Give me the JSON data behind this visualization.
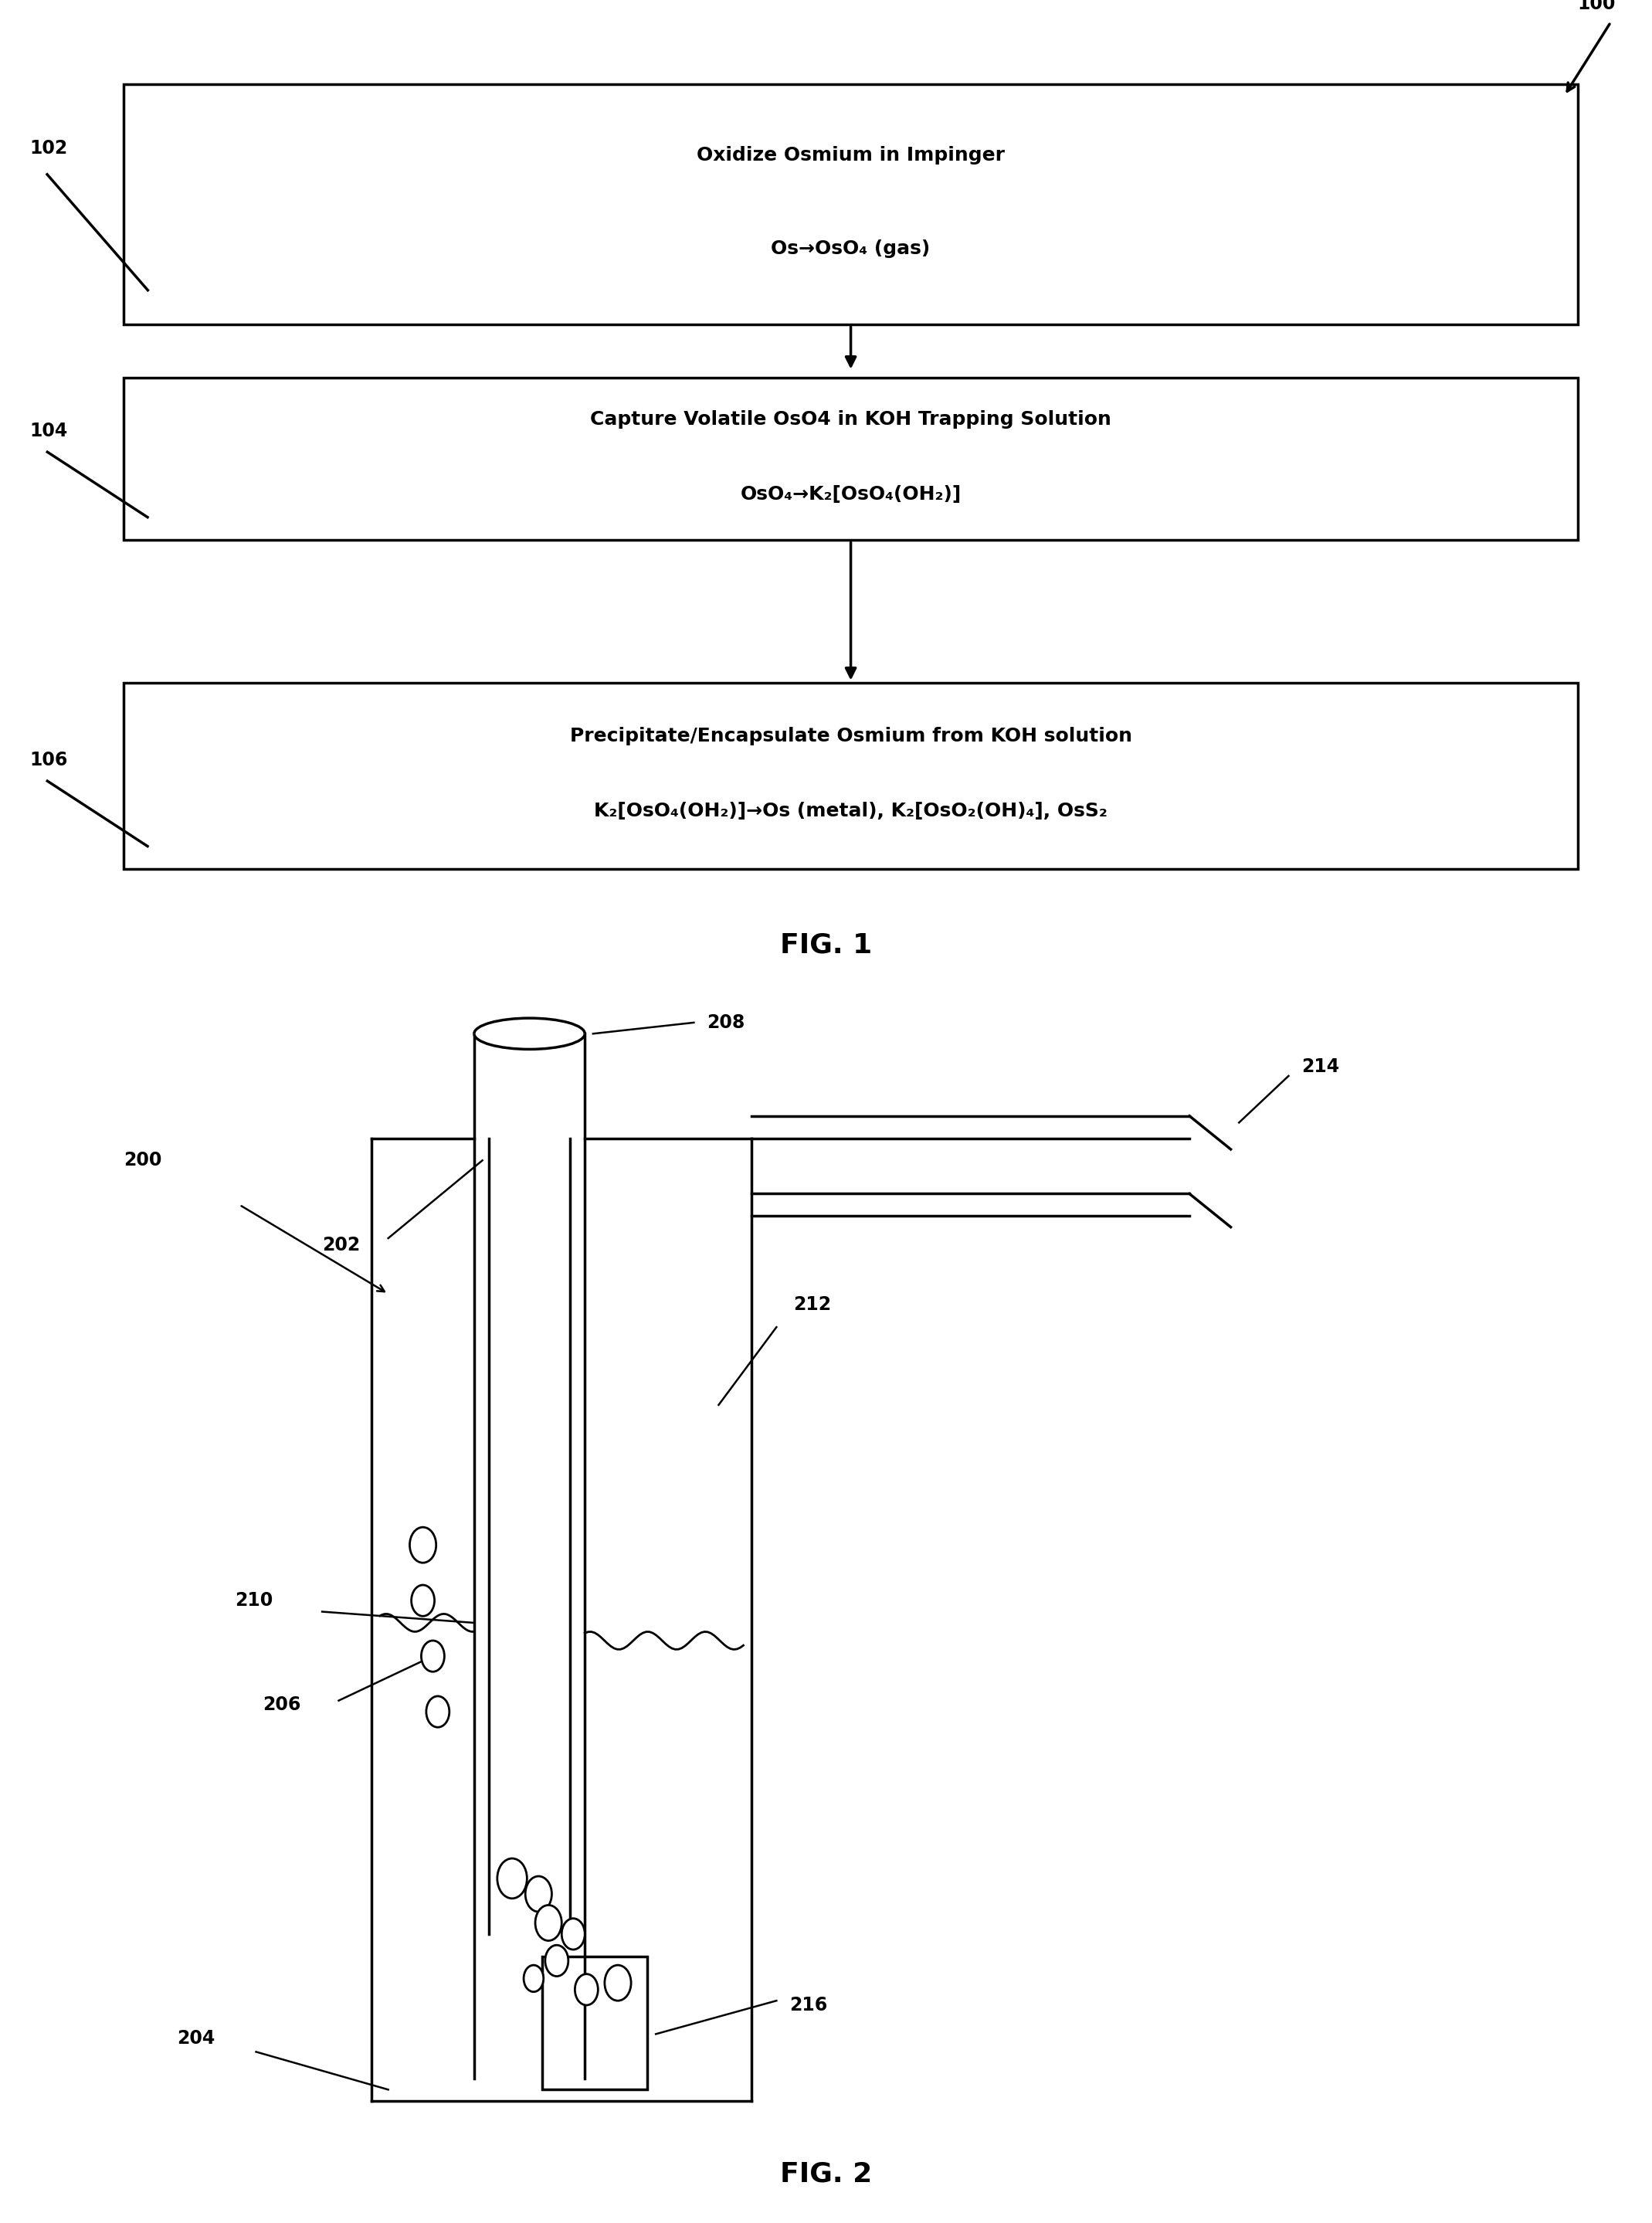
{
  "fig_width": 21.39,
  "fig_height": 28.78,
  "bg_color": "#ffffff",
  "fig1_label": "FIG. 1",
  "fig2_label": "FIG. 2",
  "box1_label_num": "102",
  "box2_label_num": "104",
  "box3_label_num": "106",
  "flow_label": "100",
  "box1_line1": "Oxidize Osmium in Impinger",
  "box1_line2": "Os→OsO₄ (gas)",
  "box2_line1": "Capture Volatile OsO4 in KOH Trapping Solution",
  "box2_line2": "OsO₄→K₂[OsO₄(OH₂)]",
  "box3_line1": "Precipitate/Encapsulate Osmium from KOH solution",
  "box3_line2": "K₂[OsO₄(OH₂)]→Os (metal), K₂[OsO₂(OH)₄], OsS₂",
  "label_200": "200",
  "label_202": "202",
  "label_204": "204",
  "label_206": "206",
  "label_208": "208",
  "label_210": "210",
  "label_212": "212",
  "label_214": "214",
  "label_216": "216"
}
